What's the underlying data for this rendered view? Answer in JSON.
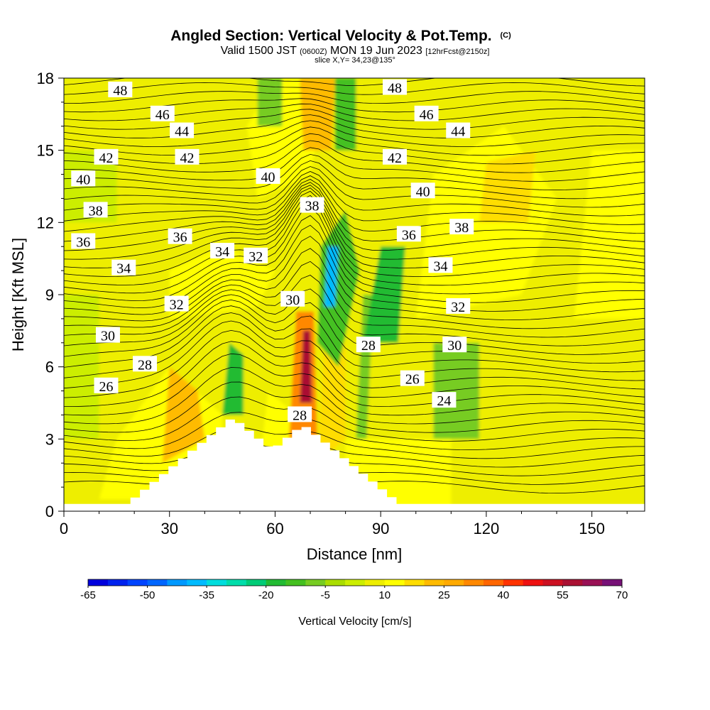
{
  "title": {
    "main": "Angled Section: Vertical Velocity & Pot.Temp.",
    "main_suffix": "(C)",
    "valid_a": "Valid 1500 JST",
    "valid_b": "(0600Z)",
    "valid_c": "MON 19 Jun 2023",
    "valid_d": "[12hrFcst@2150z]",
    "slice": "slice X,Y= 34,23@135°"
  },
  "chart_data": {
    "type": "heatmap",
    "xlabel": "Distance [nm]",
    "ylabel": "Height [Kft MSL]",
    "xlim": [
      0,
      165
    ],
    "ylim": [
      0,
      18
    ],
    "xticks": [
      0,
      30,
      60,
      90,
      120,
      150
    ],
    "yticks": [
      0,
      3,
      6,
      9,
      12,
      15,
      18
    ],
    "colorbar": {
      "label": "Vertical Velocity [cm/s]",
      "tick_labels": [
        "-65",
        "-50",
        "-35",
        "-20",
        "-5",
        "10",
        "25",
        "40",
        "55",
        "70"
      ],
      "bins": [
        -65,
        -60,
        -55,
        -50,
        -45,
        -40,
        -35,
        -30,
        -25,
        -20,
        -15,
        -10,
        -5,
        0,
        5,
        10,
        15,
        20,
        25,
        30,
        35,
        40,
        45,
        50,
        55,
        60,
        65,
        70
      ],
      "colors": [
        "#0000dd",
        "#0022ee",
        "#0044ff",
        "#0066ff",
        "#0099ff",
        "#00bbff",
        "#00dddd",
        "#00ddaa",
        "#00cc77",
        "#22bb33",
        "#44c020",
        "#77cc22",
        "#aadd00",
        "#ccee00",
        "#eeee00",
        "#ffff00",
        "#ffdd00",
        "#ffbb00",
        "#ffaa00",
        "#ff8800",
        "#ff6600",
        "#ff3300",
        "#ee1111",
        "#cc1122",
        "#aa1133",
        "#991155",
        "#771177"
      ]
    },
    "theta_contour_levels": [
      24,
      26,
      28,
      30,
      32,
      34,
      36,
      38,
      40,
      42,
      44,
      46,
      48
    ],
    "theta_labels": [
      {
        "text": "48",
        "x": 16,
        "y": 17.5
      },
      {
        "text": "46",
        "x": 28,
        "y": 16.5
      },
      {
        "text": "44",
        "x": 33.5,
        "y": 15.8
      },
      {
        "text": "42",
        "x": 12,
        "y": 14.7
      },
      {
        "text": "42",
        "x": 35,
        "y": 14.7
      },
      {
        "text": "40",
        "x": 5.5,
        "y": 13.8
      },
      {
        "text": "40",
        "x": 58,
        "y": 13.9
      },
      {
        "text": "38",
        "x": 9,
        "y": 12.5
      },
      {
        "text": "38",
        "x": 70.5,
        "y": 12.7
      },
      {
        "text": "36",
        "x": 5.5,
        "y": 11.2
      },
      {
        "text": "36",
        "x": 33,
        "y": 11.4
      },
      {
        "text": "34",
        "x": 17,
        "y": 10.1
      },
      {
        "text": "34",
        "x": 45,
        "y": 10.8
      },
      {
        "text": "32",
        "x": 54.5,
        "y": 10.6
      },
      {
        "text": "32",
        "x": 32,
        "y": 8.6
      },
      {
        "text": "30",
        "x": 12.5,
        "y": 7.3
      },
      {
        "text": "30",
        "x": 65,
        "y": 8.8
      },
      {
        "text": "28",
        "x": 23,
        "y": 6.1
      },
      {
        "text": "28",
        "x": 67,
        "y": 4
      },
      {
        "text": "26",
        "x": 12,
        "y": 5.2
      },
      {
        "text": "48",
        "x": 94,
        "y": 17.6
      },
      {
        "text": "46",
        "x": 103,
        "y": 16.5
      },
      {
        "text": "44",
        "x": 112,
        "y": 15.8
      },
      {
        "text": "42",
        "x": 94,
        "y": 14.7
      },
      {
        "text": "40",
        "x": 102,
        "y": 13.3
      },
      {
        "text": "38",
        "x": 113,
        "y": 11.8
      },
      {
        "text": "36",
        "x": 98,
        "y": 11.5
      },
      {
        "text": "34",
        "x": 107,
        "y": 10.2
      },
      {
        "text": "32",
        "x": 112,
        "y": 8.5
      },
      {
        "text": "30",
        "x": 111,
        "y": 6.9
      },
      {
        "text": "28",
        "x": 86.5,
        "y": 6.9
      },
      {
        "text": "26",
        "x": 99,
        "y": 5.5
      },
      {
        "text": "24",
        "x": 108,
        "y": 4.6
      }
    ],
    "terrain_peaks": [
      {
        "x": 48,
        "height": 3.9
      },
      {
        "x": 68,
        "height": 3.6
      }
    ]
  }
}
